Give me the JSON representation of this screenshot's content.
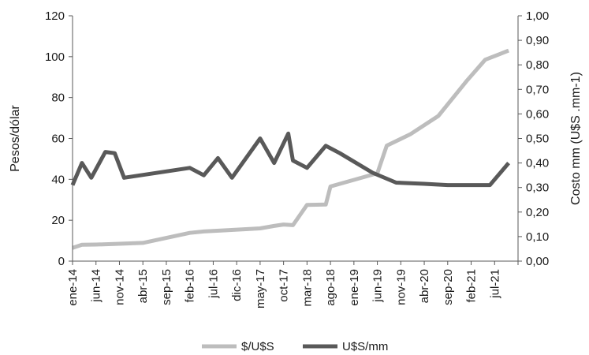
{
  "chart_data": {
    "type": "line",
    "y_left_label": "Pesos/dólar",
    "y_right_label": "Costo mm  (U$S .mm-1)",
    "y_left_lim": [
      0,
      120
    ],
    "y_left_ticks": [
      "0",
      "20",
      "40",
      "60",
      "80",
      "100",
      "120"
    ],
    "y_right_lim": [
      0,
      1
    ],
    "y_right_ticks": [
      "0,00",
      "0,10",
      "0,20",
      "0,30",
      "0,40",
      "0,50",
      "0,60",
      "0,70",
      "0,80",
      "0,90",
      "1,00"
    ],
    "x_ticks": [
      "ene-14",
      "jun-14",
      "nov-14",
      "abr-15",
      "sep-15",
      "feb-16",
      "jul-16",
      "dic-16",
      "may-17",
      "oct-17",
      "mar-18",
      "ago-18",
      "ene-19",
      "jun-19",
      "nov-19",
      "abr-20",
      "sep-20",
      "feb-21",
      "jul-21"
    ],
    "x_range_months": [
      0,
      95
    ],
    "legend_position": "bottom",
    "grid": false,
    "series": [
      {
        "name": "$/U$S",
        "axis": "left",
        "color": "#bdbdbd",
        "points": [
          [
            "ene-14",
            6.5
          ],
          [
            "mar-14",
            8.0
          ],
          [
            "jun-14",
            8.1
          ],
          [
            "nov-14",
            8.5
          ],
          [
            "abr-15",
            8.9
          ],
          [
            "feb-16",
            13.8
          ],
          [
            "may-16",
            14.5
          ],
          [
            "sep-16",
            15.0
          ],
          [
            "may-17",
            16.0
          ],
          [
            "ago-17",
            17.2
          ],
          [
            "oct-17",
            17.9
          ],
          [
            "dic-17",
            17.6
          ],
          [
            "mar-18",
            27.5
          ],
          [
            "jul-18",
            27.7
          ],
          [
            "ago-18",
            36.5
          ],
          [
            "jun-19",
            43.0
          ],
          [
            "ago-19",
            56.5
          ],
          [
            "ene-20",
            62.0
          ],
          [
            "jul-20",
            71.0
          ],
          [
            "ene-21",
            88.0
          ],
          [
            "may-21",
            98.5
          ],
          [
            "oct-21",
            103.0
          ]
        ]
      },
      {
        "name": "U$S/mm",
        "axis": "right",
        "color": "#595959",
        "points": [
          [
            "ene-14",
            0.31
          ],
          [
            "mar-14",
            0.4
          ],
          [
            "may-14",
            0.34
          ],
          [
            "ago-14",
            0.445
          ],
          [
            "oct-14",
            0.44
          ],
          [
            "dic-14",
            0.34
          ],
          [
            "feb-16",
            0.38
          ],
          [
            "may-16",
            0.35
          ],
          [
            "ago-16",
            0.42
          ],
          [
            "nov-16",
            0.34
          ],
          [
            "may-17",
            0.5
          ],
          [
            "ago-17",
            0.4
          ],
          [
            "nov-17",
            0.52
          ],
          [
            "dic-17",
            0.41
          ],
          [
            "mar-18",
            0.38
          ],
          [
            "jul-18",
            0.47
          ],
          [
            "oct-18",
            0.44
          ],
          [
            "may-19",
            0.36
          ],
          [
            "oct-19",
            0.32
          ],
          [
            "abr-20",
            0.315
          ],
          [
            "sep-20",
            0.31
          ],
          [
            "jun-21",
            0.31
          ],
          [
            "oct-21",
            0.4
          ]
        ]
      }
    ]
  }
}
